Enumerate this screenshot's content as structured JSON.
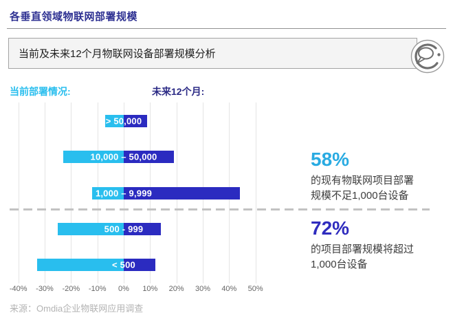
{
  "header": {
    "title": "各垂直领域物联网部署规模"
  },
  "callout": {
    "text": "当前及未来12个月物联网设备部署规模分析",
    "icon": "speech-bubble-in-circle"
  },
  "legend": {
    "current": "当前部署情况:",
    "future": "未来12个月:"
  },
  "footer": {
    "source": "来源：Omdia企业物联网应用调查"
  },
  "colors": {
    "title": "#2E3192",
    "rule": "#909090",
    "box_bg": "#F4F4F4",
    "box_border": "#A3A3A3",
    "current_series": "#29BEEE",
    "future_series": "#2B2BC0",
    "future_legend_text": "#2B2A85",
    "annotation_58": "#29ABE2",
    "annotation_72": "#2F2CBE",
    "grid": "#E4E4E4",
    "dash": "#C2C2C2",
    "axis_text": "#666666",
    "source_text": "#B3B3B3",
    "icon_stroke": "#6F6F6F"
  },
  "chart_data": {
    "type": "bar",
    "variant": "horizontal-diverging",
    "title": "",
    "categories": [
      "> 50,000",
      "10,000 – 50,000",
      "1,000 – 9,999",
      "500 - 999",
      "< 500"
    ],
    "series": [
      {
        "name": "当前部署情况",
        "direction": "left",
        "color": "#29BEEE",
        "values": [
          7,
          23,
          12,
          25,
          33
        ]
      },
      {
        "name": "未来12个月",
        "direction": "right",
        "color": "#2B2BC0",
        "values": [
          9,
          19,
          44,
          14,
          12
        ]
      }
    ],
    "values_unit": "%",
    "x_tick_values": [
      -40,
      -30,
      -20,
      -10,
      0,
      10,
      20,
      30,
      40,
      50
    ],
    "x_tick_labels": [
      "-40%",
      "-30%",
      "-20%",
      "-10%",
      "0%",
      "10%",
      "20%",
      "30%",
      "40%",
      "50%"
    ],
    "xlim": [
      -40,
      50
    ],
    "grid": "vertical",
    "legend_position": "top",
    "bar_labels_on_bars": true,
    "annotations": [
      {
        "value": "58%",
        "line1": "的现有物联网项目部署",
        "line2": "规模不足1,000台设备",
        "color": "#29ABE2"
      },
      {
        "value": "72%",
        "line1": "的项目部署规模将超过",
        "line2": "1,000台设备",
        "color": "#2F2CBE"
      }
    ]
  }
}
